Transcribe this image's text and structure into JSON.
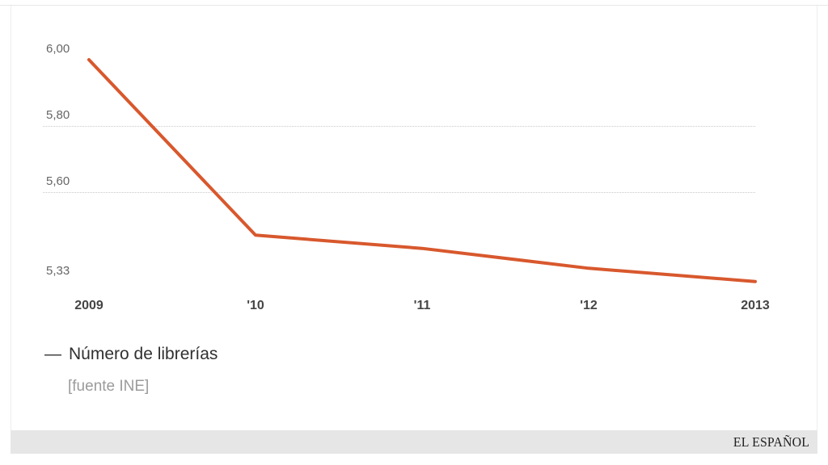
{
  "chart_data": {
    "type": "line",
    "title": "",
    "categories": [
      "2009",
      "2010",
      "2011",
      "2012",
      "2013"
    ],
    "x_tick_labels": [
      "2009",
      "'10",
      "'11",
      "'12",
      "2013"
    ],
    "series": [
      {
        "name": "Número de librerías",
        "values": [
          6.0,
          5.47,
          5.43,
          5.37,
          5.33
        ]
      }
    ],
    "y_ticks": [
      {
        "label": "6,00",
        "value": 6.0
      },
      {
        "label": "5,80",
        "value": 5.8
      },
      {
        "label": "5,60",
        "value": 5.6
      },
      {
        "label": "5,33",
        "value": 5.33
      }
    ],
    "gridline_values": [
      5.8,
      5.6
    ],
    "ylim": [
      5.28,
      6.08
    ],
    "grid": "dotted-horizontal",
    "legend_position": "bottom-left",
    "line_color": "#d8582d"
  },
  "legend": {
    "marker": "—",
    "label": "Número de librerías"
  },
  "source": {
    "label": "[fuente INE]"
  },
  "footer": {
    "brand": "EL ESPAÑOL"
  },
  "colors": {
    "line": "#d8582d",
    "gridline": "#c9c9c9",
    "y_tick_text": "#666666",
    "x_tick_text": "#454545",
    "legend_text": "#303030",
    "source_text": "#9b9b9b",
    "footer_bg": "#e6e6e6",
    "footer_text": "#1f1f1f",
    "card_border": "#ededed"
  }
}
